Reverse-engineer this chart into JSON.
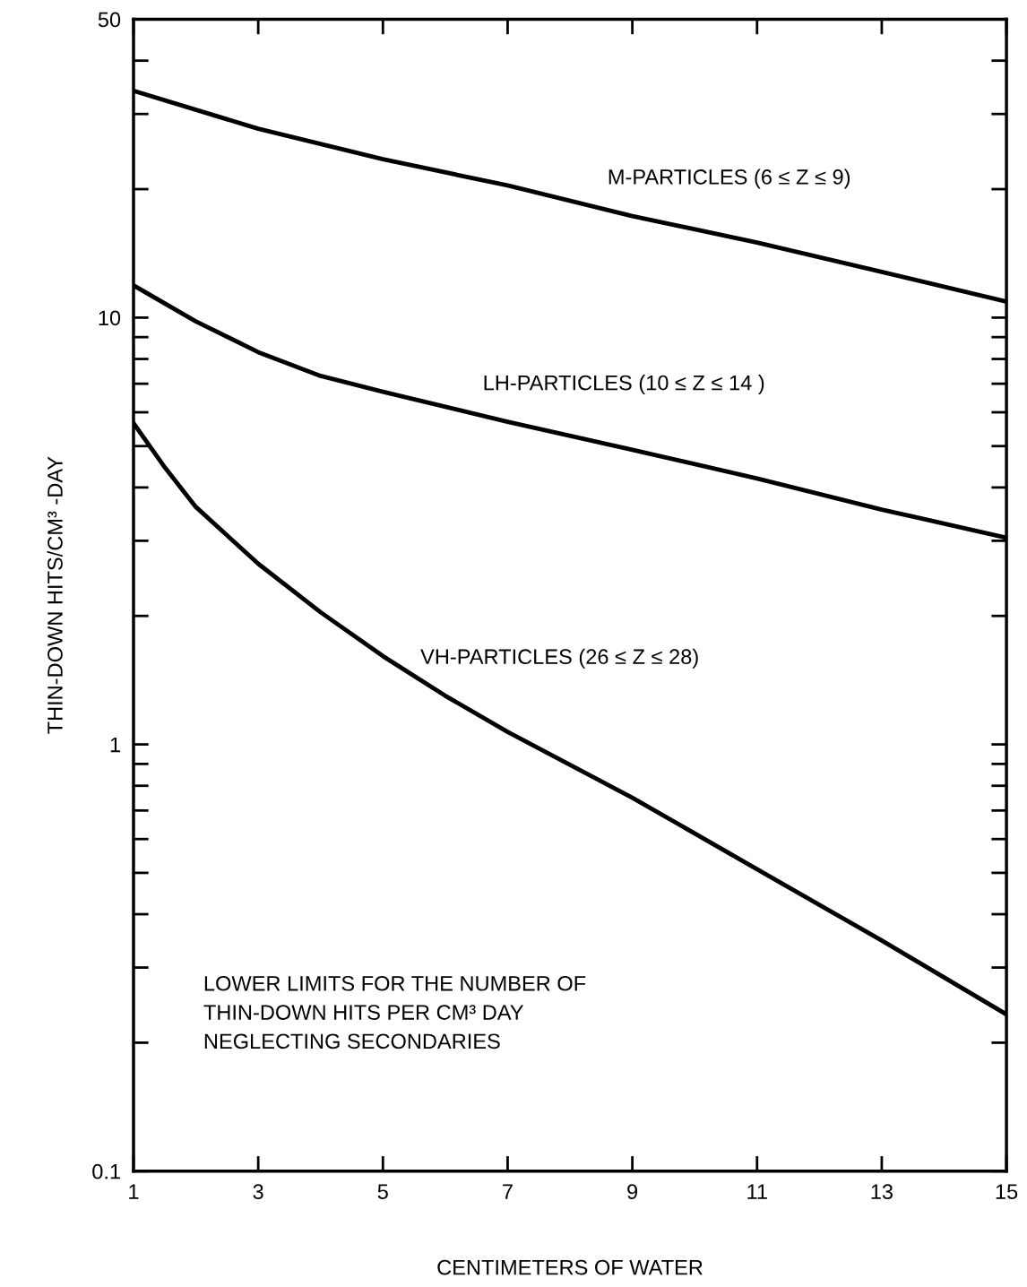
{
  "chart_data": {
    "type": "line",
    "xlabel": "CENTIMETERS OF WATER",
    "ylabel": "THIN-DOWN HITS/CM³ -DAY",
    "series": [
      {
        "name": "M-PARTICLES (6 ≤ Z ≤ 9)",
        "color": "#000000",
        "x": [
          1,
          3,
          5,
          7,
          9,
          11,
          13,
          15
        ],
        "values": [
          34.0,
          27.7,
          23.5,
          20.4,
          17.3,
          15.0,
          12.8,
          10.9
        ]
      },
      {
        "name": "LH-PARTICLES (10 ≤ Z ≤ 14 )",
        "color": "#000000",
        "x": [
          1,
          2,
          3,
          4,
          5,
          7,
          9,
          11,
          13,
          15
        ],
        "values": [
          11.9,
          9.8,
          8.3,
          7.3,
          6.7,
          5.7,
          4.9,
          4.2,
          3.55,
          3.05
        ]
      },
      {
        "name": "VH-PARTICLES (26 ≤ Z ≤ 28)",
        "color": "#000000",
        "x": [
          1,
          1.5,
          2,
          3,
          4,
          5,
          6,
          7,
          9,
          11,
          13,
          15
        ],
        "values": [
          5.66,
          4.46,
          3.6,
          2.65,
          2.04,
          1.61,
          1.3,
          1.07,
          0.75,
          0.51,
          0.347,
          0.233
        ]
      }
    ],
    "log": "y",
    "xlim": [
      1,
      15
    ],
    "xticks": [
      1,
      3,
      5,
      7,
      9,
      11,
      13,
      15
    ],
    "ylim": [
      0.1,
      50
    ],
    "yticks": [
      0.1,
      1,
      10,
      50
    ],
    "grid": false,
    "legend": false,
    "marker": "none",
    "line_style": "solid",
    "annotations": [
      "LOWER LIMITS FOR THE NUMBER OF\nTHIN-DOWN HITS PER CM³ DAY\nNEGLECTING SECONDARIES"
    ]
  }
}
